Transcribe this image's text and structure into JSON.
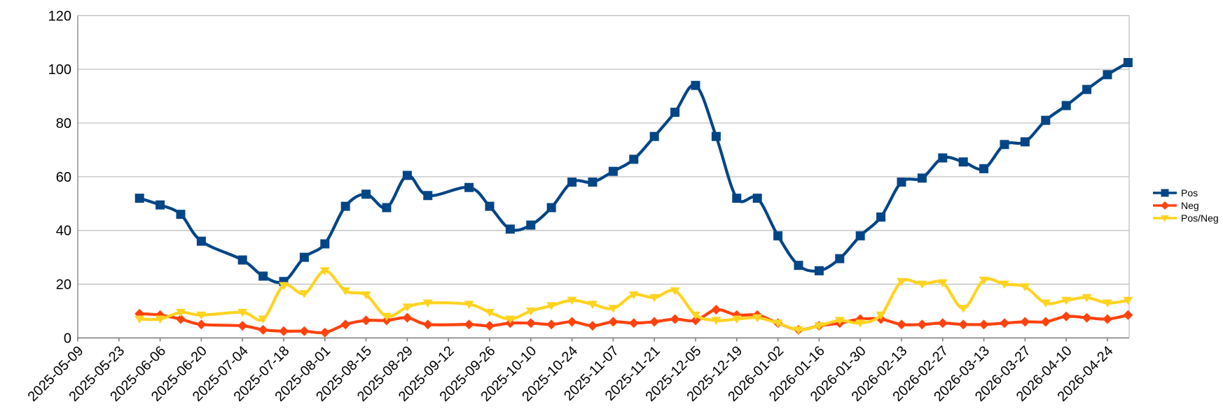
{
  "chart_data": {
    "type": "line",
    "title": "",
    "xlabel": "",
    "ylabel": "",
    "smooth_lines": true,
    "grid": true,
    "legend_position": "right",
    "background": "#ffffff",
    "grid_color": "#c0c0c0",
    "axis_color": "#808080",
    "x_dates": [
      "2025-05-30",
      "2025-06-06",
      "2025-06-13",
      "2025-06-20",
      "2025-07-04",
      "2025-07-11",
      "2025-07-18",
      "2025-07-25",
      "2025-08-01",
      "2025-08-08",
      "2025-08-15",
      "2025-08-22",
      "2025-08-29",
      "2025-09-05",
      "2025-09-19",
      "2025-09-26",
      "2025-10-03",
      "2025-10-10",
      "2025-10-17",
      "2025-10-24",
      "2025-10-31",
      "2025-11-07",
      "2025-11-14",
      "2025-11-21",
      "2025-11-28",
      "2025-12-05",
      "2025-12-12",
      "2025-12-19",
      "2025-12-26",
      "2026-01-02",
      "2026-01-09",
      "2026-01-16",
      "2026-01-23",
      "2026-01-30",
      "2026-02-06",
      "2026-02-13",
      "2026-02-20",
      "2026-02-27",
      "2026-03-06",
      "2026-03-13",
      "2026-03-20",
      "2026-03-27",
      "2026-04-03",
      "2026-04-10",
      "2026-04-17",
      "2026-04-24",
      "2026-05-01"
    ],
    "missing_weeks": [
      "2025-06-27",
      "2025-09-12"
    ],
    "series": [
      {
        "name": "Pos",
        "color": "#004586",
        "marker": "square",
        "values": [
          52,
          49.5,
          46,
          36,
          29,
          23,
          21,
          30,
          35,
          49,
          53.5,
          48.5,
          60.5,
          53,
          56,
          49,
          40.5,
          42,
          48.5,
          58,
          58,
          62,
          66.5,
          75,
          84,
          94,
          75,
          52,
          52,
          38,
          27,
          25,
          29.5,
          38,
          45,
          58,
          59.5,
          67,
          65.5,
          63,
          72,
          73,
          81,
          86.5,
          92.5,
          98,
          102.5
        ]
      },
      {
        "name": "Neg",
        "color": "#FF420E",
        "marker": "diamond",
        "values": [
          9,
          8.5,
          7,
          5,
          4.5,
          3,
          2.5,
          2.5,
          2,
          5,
          6.5,
          6.5,
          7.5,
          5,
          5,
          4.5,
          5.5,
          5.5,
          5,
          6,
          4.5,
          6,
          5.5,
          6,
          7,
          6.5,
          10.5,
          8.5,
          8.5,
          5.5,
          3,
          4.5,
          5.5,
          7,
          7,
          5,
          5,
          5.5,
          5,
          5,
          5.5,
          6,
          6,
          8,
          7.5,
          7,
          8.5
        ]
      },
      {
        "name": "Pos/Neg",
        "color": "#FFD320",
        "marker": "triangle-down",
        "values": [
          7,
          7,
          9.5,
          8.5,
          9.5,
          7,
          19.5,
          16.5,
          25,
          17.5,
          16,
          8,
          11.5,
          13,
          12.5,
          9.5,
          7,
          10,
          12,
          14,
          12.5,
          11,
          16,
          15,
          17.5,
          8.5,
          6.5,
          7,
          7.5,
          5.5,
          3,
          4.5,
          6.5,
          5.5,
          8.5,
          21,
          20,
          20.5,
          11,
          21.5,
          20,
          19,
          13,
          14,
          15,
          13,
          14
        ]
      }
    ],
    "x_axis": {
      "start_date": "2025-05-09",
      "tick_interval_days": 14,
      "label_rotation_deg": 45,
      "tick_labels": [
        "2025-05-09",
        "2025-05-23",
        "2025-06-06",
        "2025-06-20",
        "2025-07-04",
        "2025-07-18",
        "2025-08-01",
        "2025-08-15",
        "2025-08-29",
        "2025-09-12",
        "2025-09-26",
        "2025-10-10",
        "2025-10-24",
        "2025-11-07",
        "2025-11-21",
        "2025-12-05",
        "2025-12-19",
        "2026-01-02",
        "2026-01-16",
        "2026-01-30",
        "2026-02-13",
        "2026-02-27",
        "2026-03-13",
        "2026-03-27",
        "2026-04-10",
        "2026-04-24"
      ]
    },
    "y_axis": {
      "min": 0,
      "max": 120,
      "tick_step": 20,
      "tick_labels": [
        "0",
        "20",
        "40",
        "60",
        "80",
        "100",
        "120"
      ]
    }
  },
  "legend": {
    "items": [
      {
        "label": "Pos"
      },
      {
        "label": "Neg"
      },
      {
        "label": "Pos/Neg"
      }
    ]
  }
}
